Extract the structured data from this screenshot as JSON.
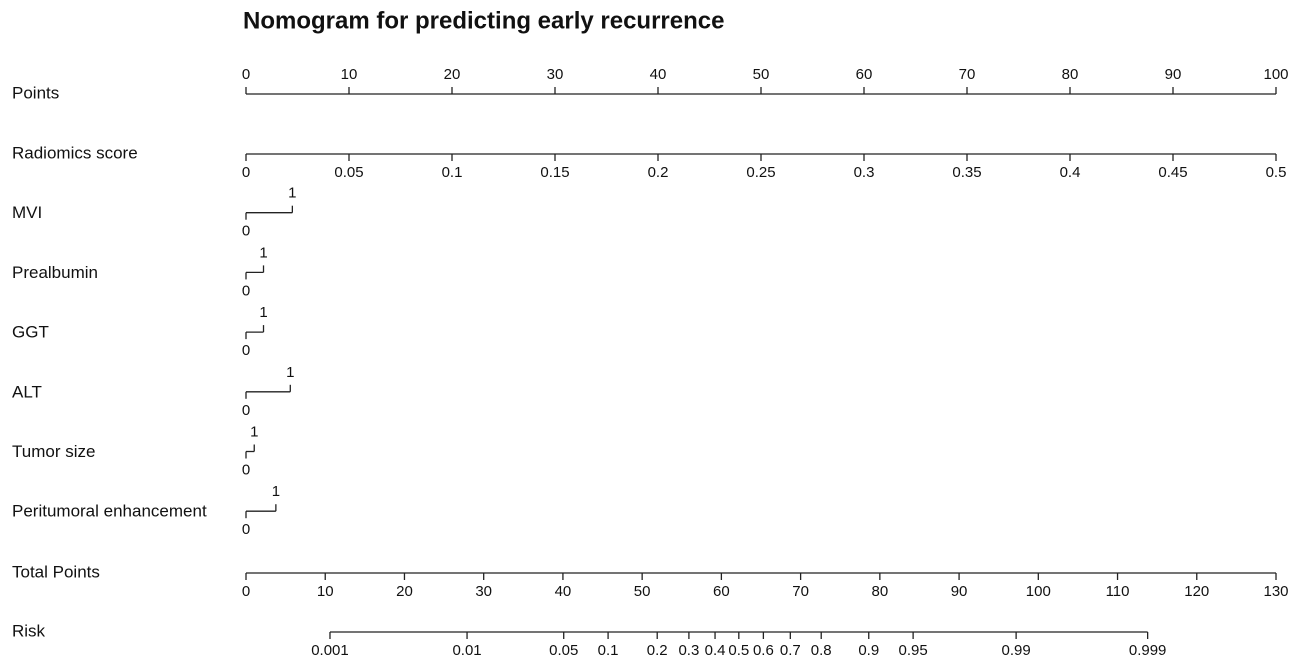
{
  "chart_data": {
    "type": "nomogram",
    "title": "Nomogram for predicting early recurrence",
    "points_axis": {
      "label": "Points",
      "xlim": [
        0,
        100
      ],
      "xticks": [
        0,
        10,
        20,
        30,
        40,
        50,
        60,
        70,
        80,
        90,
        100
      ]
    },
    "variables": [
      {
        "name": "Radiomics score",
        "ticks": [
          0,
          0.05,
          0.1,
          0.15,
          0.2,
          0.25,
          0.3,
          0.35,
          0.4,
          0.45,
          0.5
        ],
        "points": [
          0,
          10,
          20,
          30,
          40,
          50,
          60,
          70,
          80,
          90,
          100
        ]
      },
      {
        "name": "MVI",
        "ticks": [
          0,
          1
        ],
        "points": [
          0,
          4.5
        ]
      },
      {
        "name": "Prealbumin",
        "ticks": [
          0,
          1
        ],
        "points": [
          0,
          1.7
        ]
      },
      {
        "name": "GGT",
        "ticks": [
          0,
          1
        ],
        "points": [
          0,
          1.7
        ]
      },
      {
        "name": "ALT",
        "ticks": [
          0,
          1
        ],
        "points": [
          0,
          4.3
        ]
      },
      {
        "name": "Tumor size",
        "ticks": [
          0,
          1
        ],
        "points": [
          0,
          0.8
        ]
      },
      {
        "name": "Peritumoral enhancement",
        "ticks": [
          0,
          1
        ],
        "points": [
          0,
          2.9
        ]
      }
    ],
    "total_axis": {
      "label": "Total Points",
      "xlim": [
        0,
        130
      ],
      "xticks": [
        0,
        10,
        20,
        30,
        40,
        50,
        60,
        70,
        80,
        90,
        100,
        110,
        120,
        130
      ]
    },
    "risk": {
      "label": "Risk",
      "ticks": [
        0.001,
        0.01,
        0.05,
        0.1,
        0.2,
        0.3,
        0.4,
        0.5,
        0.6,
        0.7,
        0.8,
        0.9,
        0.95,
        0.99,
        0.999
      ],
      "total_points": [
        10.6,
        27.9,
        40.1,
        45.7,
        51.9,
        55.9,
        59.2,
        62.2,
        65.3,
        68.7,
        72.6,
        78.6,
        84.2,
        97.2,
        113.8
      ]
    }
  }
}
